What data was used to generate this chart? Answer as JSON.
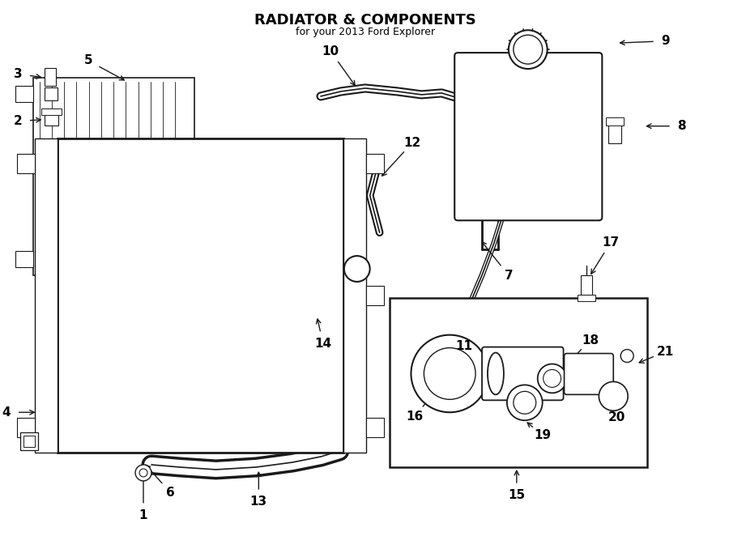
{
  "title": "RADIATOR & COMPONENTS",
  "subtitle": "for your 2013 Ford Explorer",
  "bg_color": "#ffffff",
  "line_color": "#1a1a1a",
  "text_color": "#000000",
  "fig_width": 9.0,
  "fig_height": 6.62
}
